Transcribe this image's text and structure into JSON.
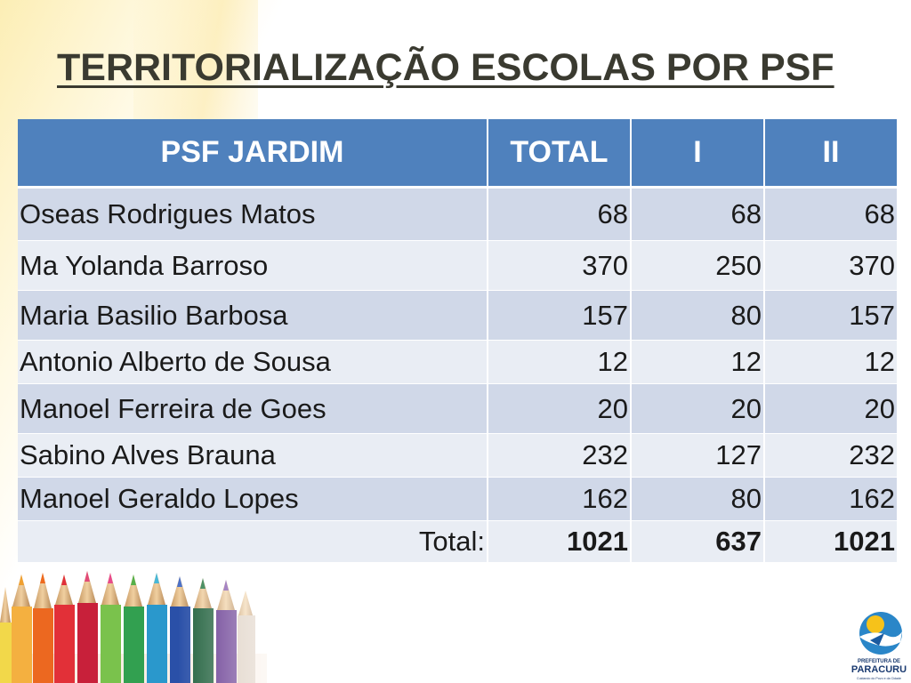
{
  "title": "TERRITORIALIZAÇÃO ESCOLAS POR PSF",
  "table": {
    "headers": [
      "PSF JARDIM",
      "TOTAL",
      "I",
      "II"
    ],
    "rows": [
      {
        "name": "Oseas Rodrigues Matos",
        "total": "68",
        "i": "68",
        "ii": "68"
      },
      {
        "name": "Ma Yolanda Barroso",
        "total": "370",
        "i": "250",
        "ii": "370"
      },
      {
        "name": "Maria Basilio Barbosa",
        "total": "157",
        "i": "80",
        "ii": "157"
      },
      {
        "name": "Antonio Alberto de Sousa",
        "total": "12",
        "i": "12",
        "ii": "12"
      },
      {
        "name": "Manoel Ferreira de Goes",
        "total": "20",
        "i": "20",
        "ii": "20"
      },
      {
        "name": "Sabino Alves Brauna",
        "total": "232",
        "i": "127",
        "ii": "232"
      },
      {
        "name": "Manoel Geraldo Lopes",
        "total": "162",
        "i": "80",
        "ii": "162"
      }
    ],
    "total_row": {
      "label": "Total:",
      "total": "1021",
      "i": "637",
      "ii": "1021"
    }
  },
  "logo": {
    "line1": "PREFEITURA DE",
    "line2": "PARACURU",
    "tagline": "Cuidando do Povo e da Cidade"
  },
  "colors": {
    "header_bg": "#4f81bd",
    "row_dark": "#d0d8e8",
    "row_light": "#e9edf4",
    "title_text": "#3a3a30"
  }
}
